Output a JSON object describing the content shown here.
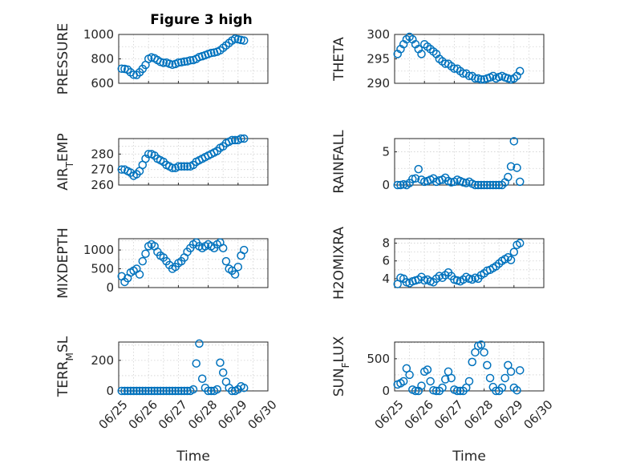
{
  "title": "Figure 3 high",
  "colors": {
    "series": "#0072BD",
    "axes": "#262626"
  },
  "x_ticks": [
    "06/25",
    "06/26",
    "06/27",
    "06/28",
    "06/29",
    "06/30"
  ],
  "x_label": "Time",
  "chart_data": [
    {
      "type": "scatter",
      "ylabel": "PRESSURE",
      "ylim": [
        600,
        1000
      ],
      "yticks": [
        "600",
        "800",
        "1000"
      ],
      "grid": true,
      "marker": "circle",
      "x": [
        0.1,
        0.2,
        0.3,
        0.4,
        0.5,
        0.6,
        0.7,
        0.8,
        0.9,
        1.0,
        1.1,
        1.2,
        1.3,
        1.4,
        1.5,
        1.6,
        1.7,
        1.8,
        1.9,
        2.0,
        2.1,
        2.2,
        2.3,
        2.4,
        2.5,
        2.6,
        2.7,
        2.8,
        2.9,
        3.0,
        3.1,
        3.2,
        3.3,
        3.4,
        3.5,
        3.6,
        3.7,
        3.8,
        3.9,
        4.0,
        4.1,
        4.2
      ],
      "y": [
        720,
        718,
        712,
        690,
        670,
        668,
        690,
        718,
        750,
        800,
        812,
        805,
        790,
        775,
        768,
        770,
        760,
        752,
        758,
        770,
        772,
        778,
        780,
        788,
        790,
        800,
        815,
        822,
        830,
        840,
        848,
        852,
        858,
        870,
        890,
        910,
        930,
        950,
        965,
        960,
        955,
        950
      ]
    },
    {
      "type": "scatter",
      "ylabel": "THETA",
      "ylim": [
        290,
        300
      ],
      "yticks": [
        "290",
        "295",
        "300"
      ],
      "grid": true,
      "marker": "circle",
      "x": [
        0.1,
        0.2,
        0.3,
        0.4,
        0.5,
        0.6,
        0.7,
        0.8,
        0.9,
        1.0,
        1.1,
        1.2,
        1.3,
        1.4,
        1.5,
        1.6,
        1.7,
        1.8,
        1.9,
        2.0,
        2.1,
        2.2,
        2.3,
        2.4,
        2.5,
        2.6,
        2.7,
        2.8,
        2.9,
        3.0,
        3.1,
        3.2,
        3.3,
        3.4,
        3.5,
        3.6,
        3.7,
        3.8,
        3.9,
        4.0,
        4.1,
        4.2
      ],
      "y": [
        296,
        297,
        298,
        299,
        299.5,
        299,
        298,
        297,
        296,
        298,
        297.5,
        297,
        296.5,
        296,
        295,
        294.5,
        294,
        294,
        293.5,
        293,
        293,
        292.5,
        292,
        292,
        291.5,
        291.5,
        291,
        291,
        290.8,
        290.8,
        291,
        291.2,
        291.5,
        291,
        291.3,
        291.5,
        291.2,
        291,
        290.8,
        291,
        291.5,
        292.5
      ]
    },
    {
      "type": "scatter",
      "ylabel": "AIR_TEMP",
      "ylim": [
        260,
        290
      ],
      "yticks": [
        "260",
        "270",
        "280"
      ],
      "grid": true,
      "marker": "circle",
      "x": [
        0.1,
        0.2,
        0.3,
        0.4,
        0.5,
        0.6,
        0.7,
        0.8,
        0.9,
        1.0,
        1.1,
        1.2,
        1.3,
        1.4,
        1.5,
        1.6,
        1.7,
        1.8,
        1.9,
        2.0,
        2.1,
        2.2,
        2.3,
        2.4,
        2.5,
        2.6,
        2.7,
        2.8,
        2.9,
        3.0,
        3.1,
        3.2,
        3.3,
        3.4,
        3.5,
        3.6,
        3.7,
        3.8,
        3.9,
        4.0,
        4.1,
        4.2
      ],
      "y": [
        270,
        270,
        269,
        268,
        266,
        267,
        269,
        273,
        277,
        280,
        280,
        279,
        277,
        276,
        275,
        273,
        272,
        271,
        271,
        272,
        272,
        272,
        272,
        272,
        273,
        275,
        276,
        277,
        278,
        279,
        280,
        281,
        282,
        284,
        285,
        287,
        288,
        289,
        289,
        289,
        290,
        290
      ]
    },
    {
      "type": "scatter",
      "ylabel": "RAINFALL",
      "ylim": [
        0,
        7
      ],
      "yticks": [
        "0",
        "5"
      ],
      "grid": true,
      "marker": "circle",
      "x": [
        0.1,
        0.2,
        0.3,
        0.4,
        0.5,
        0.6,
        0.7,
        0.8,
        0.9,
        1.0,
        1.1,
        1.2,
        1.3,
        1.4,
        1.5,
        1.6,
        1.7,
        1.8,
        1.9,
        2.0,
        2.1,
        2.2,
        2.3,
        2.4,
        2.5,
        2.6,
        2.7,
        2.8,
        2.9,
        3.0,
        3.1,
        3.2,
        3.3,
        3.4,
        3.5,
        3.6,
        3.7,
        3.8,
        3.9,
        4.0,
        4.1,
        4.2
      ],
      "y": [
        0,
        0,
        0.1,
        0,
        0.3,
        0.9,
        1.0,
        2.4,
        0.8,
        0.5,
        0.6,
        0.8,
        1.0,
        0.5,
        0.7,
        0.8,
        1.1,
        0.6,
        0.4,
        0.5,
        0.8,
        0.6,
        0.4,
        0.3,
        0.5,
        0.2,
        0,
        0,
        0,
        0,
        0,
        0,
        0,
        0,
        0,
        0,
        0.4,
        1.2,
        2.8,
        6.6,
        2.6,
        0.5
      ]
    },
    {
      "type": "scatter",
      "ylabel": "MIXDEPTH",
      "ylim": [
        0,
        1300
      ],
      "yticks": [
        "0",
        "500",
        "1000"
      ],
      "grid": true,
      "marker": "circle",
      "x": [
        0.1,
        0.2,
        0.3,
        0.4,
        0.5,
        0.6,
        0.7,
        0.8,
        0.9,
        1.0,
        1.1,
        1.2,
        1.3,
        1.4,
        1.5,
        1.6,
        1.7,
        1.8,
        1.9,
        2.0,
        2.1,
        2.2,
        2.3,
        2.4,
        2.5,
        2.6,
        2.7,
        2.8,
        2.9,
        3.0,
        3.1,
        3.2,
        3.3,
        3.4,
        3.5,
        3.6,
        3.7,
        3.8,
        3.9,
        4.0,
        4.1,
        4.2
      ],
      "y": [
        300,
        150,
        250,
        400,
        450,
        500,
        350,
        700,
        900,
        1100,
        1150,
        1100,
        950,
        850,
        800,
        700,
        600,
        500,
        550,
        650,
        700,
        800,
        950,
        1050,
        1150,
        1200,
        1100,
        1050,
        1100,
        1150,
        1100,
        1050,
        1150,
        1200,
        1050,
        700,
        500,
        450,
        350,
        550,
        850,
        1000
      ]
    },
    {
      "type": "scatter",
      "ylabel": "H2OMIXRA",
      "ylim": [
        3,
        8.5
      ],
      "yticks": [
        "4",
        "6",
        "8"
      ],
      "grid": true,
      "marker": "circle",
      "x": [
        0.1,
        0.2,
        0.3,
        0.4,
        0.5,
        0.6,
        0.7,
        0.8,
        0.9,
        1.0,
        1.1,
        1.2,
        1.3,
        1.4,
        1.5,
        1.6,
        1.7,
        1.8,
        1.9,
        2.0,
        2.1,
        2.2,
        2.3,
        2.4,
        2.5,
        2.6,
        2.7,
        2.8,
        2.9,
        3.0,
        3.1,
        3.2,
        3.3,
        3.4,
        3.5,
        3.6,
        3.7,
        3.8,
        3.9,
        4.0,
        4.1,
        4.2
      ],
      "y": [
        3.4,
        4.1,
        4.0,
        3.6,
        3.5,
        3.7,
        3.8,
        3.9,
        4.2,
        3.8,
        3.9,
        3.7,
        3.6,
        4.0,
        4.3,
        4.1,
        4.4,
        4.7,
        4.3,
        3.9,
        3.8,
        3.7,
        3.9,
        4.2,
        4.0,
        3.9,
        4.1,
        4.0,
        4.4,
        4.6,
        4.9,
        5.0,
        5.2,
        5.4,
        5.7,
        6.0,
        6.2,
        6.4,
        6.1,
        7.0,
        7.8,
        8.0
      ]
    },
    {
      "type": "scatter",
      "ylabel": "TERR_MSL",
      "ylim": [
        0,
        320
      ],
      "yticks": [
        "0",
        "200"
      ],
      "grid": true,
      "marker": "circle",
      "x": [
        0.1,
        0.2,
        0.3,
        0.4,
        0.5,
        0.6,
        0.7,
        0.8,
        0.9,
        1.0,
        1.1,
        1.2,
        1.3,
        1.4,
        1.5,
        1.6,
        1.7,
        1.8,
        1.9,
        2.0,
        2.1,
        2.2,
        2.3,
        2.4,
        2.5,
        2.6,
        2.7,
        2.8,
        2.9,
        3.0,
        3.1,
        3.2,
        3.3,
        3.4,
        3.5,
        3.6,
        3.7,
        3.8,
        3.9,
        4.0,
        4.1,
        4.2
      ],
      "y": [
        0,
        0,
        0,
        0,
        0,
        0,
        0,
        0,
        0,
        0,
        0,
        0,
        0,
        0,
        0,
        0,
        0,
        0,
        0,
        0,
        0,
        0,
        0,
        0,
        10,
        180,
        310,
        80,
        20,
        0,
        0,
        0,
        10,
        185,
        120,
        60,
        20,
        0,
        0,
        10,
        30,
        20
      ]
    },
    {
      "type": "scatter",
      "ylabel": "SUN_FLUX",
      "ylim": [
        0,
        760
      ],
      "yticks": [
        "0",
        "500"
      ],
      "grid": true,
      "marker": "circle",
      "x": [
        0.1,
        0.2,
        0.3,
        0.4,
        0.5,
        0.6,
        0.7,
        0.8,
        0.9,
        1.0,
        1.1,
        1.2,
        1.3,
        1.4,
        1.5,
        1.6,
        1.7,
        1.8,
        1.9,
        2.0,
        2.1,
        2.2,
        2.3,
        2.4,
        2.5,
        2.6,
        2.7,
        2.8,
        2.9,
        3.0,
        3.1,
        3.2,
        3.3,
        3.4,
        3.5,
        3.6,
        3.7,
        3.8,
        3.9,
        4.0,
        4.1,
        4.2
      ],
      "y": [
        100,
        120,
        150,
        350,
        250,
        20,
        0,
        0,
        80,
        300,
        330,
        150,
        10,
        0,
        0,
        50,
        180,
        300,
        200,
        20,
        0,
        0,
        0,
        50,
        150,
        450,
        600,
        700,
        720,
        600,
        400,
        200,
        60,
        0,
        0,
        50,
        200,
        400,
        300,
        50,
        10,
        320
      ]
    }
  ]
}
